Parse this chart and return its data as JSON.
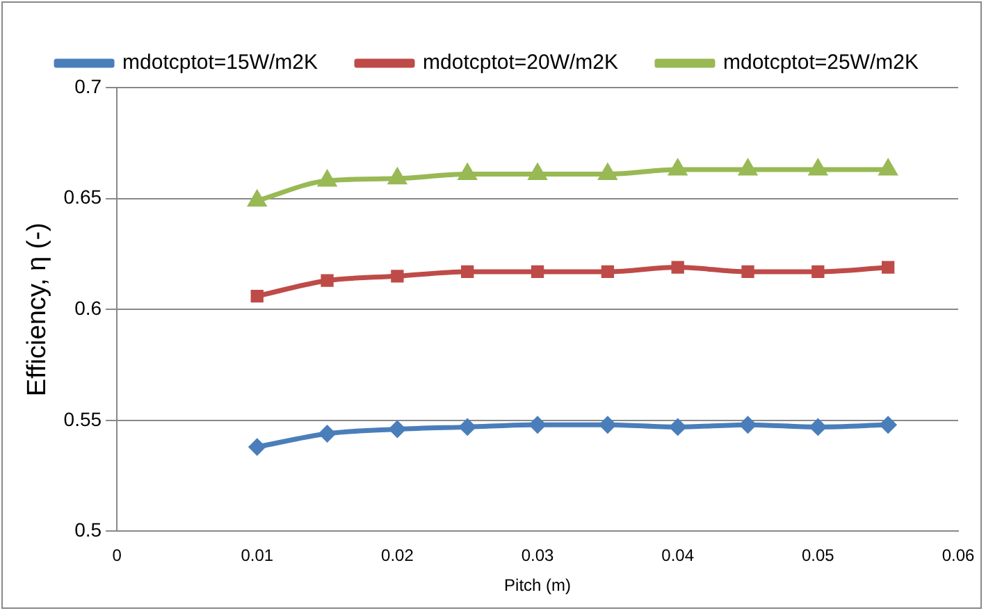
{
  "chart_data": {
    "type": "line",
    "xlabel": "Pitch (m)",
    "ylabel": "Efficiency, η (-)",
    "x": [
      0.01,
      0.015,
      0.02,
      0.025,
      0.03,
      0.035,
      0.04,
      0.045,
      0.05,
      0.055
    ],
    "series": [
      {
        "name": "mdotcptot=15W/m2K",
        "color": "#4a7ebb",
        "marker": "diamond",
        "values": [
          0.538,
          0.544,
          0.546,
          0.547,
          0.548,
          0.548,
          0.547,
          0.548,
          0.547,
          0.548
        ]
      },
      {
        "name": "mdotcptot=20W/m2K",
        "color": "#be4b48",
        "marker": "square",
        "values": [
          0.606,
          0.613,
          0.615,
          0.617,
          0.617,
          0.617,
          0.619,
          0.617,
          0.617,
          0.619
        ]
      },
      {
        "name": "mdotcptot=25W/m2K",
        "color": "#98b954",
        "marker": "triangle",
        "values": [
          0.649,
          0.658,
          0.659,
          0.661,
          0.661,
          0.661,
          0.663,
          0.663,
          0.663,
          0.663
        ]
      }
    ],
    "xlim": [
      0,
      0.06
    ],
    "xticks": [
      0,
      0.01,
      0.02,
      0.03,
      0.04,
      0.05,
      0.06
    ],
    "ylim": [
      0.5,
      0.7
    ],
    "yticks": [
      0.5,
      0.55,
      0.6,
      0.65,
      0.7
    ],
    "grid": "y",
    "legend": "top",
    "line_style": "solid"
  }
}
